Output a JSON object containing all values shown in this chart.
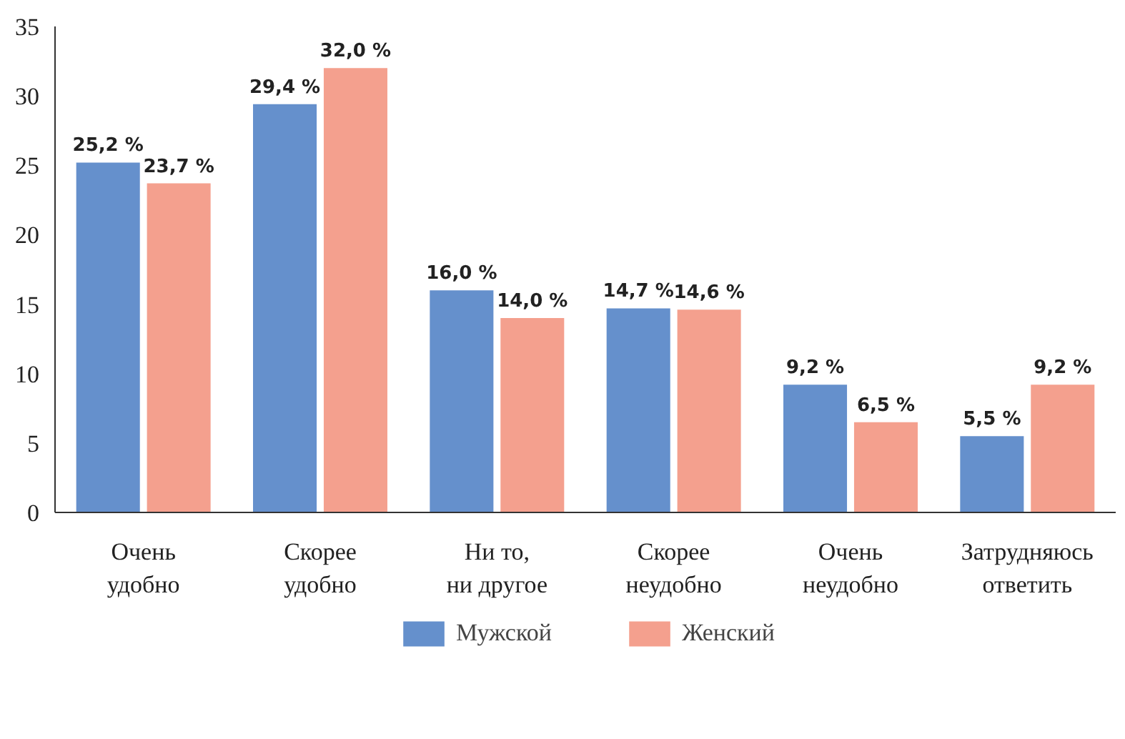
{
  "chart_data": {
    "type": "bar",
    "categories": [
      "Очень\nудобно",
      "Скорее\nудобно",
      "Ни то,\nни другое",
      "Скорее\nнеудобно",
      "Очень\nнеудобно",
      "Затрудняюсь\nответить"
    ],
    "series": [
      {
        "name": "Мужской",
        "color": "#6590cc",
        "values": [
          25.2,
          29.4,
          16.0,
          14.7,
          9.2,
          5.5
        ],
        "value_labels": [
          "25,2 %",
          "29,4 %",
          "16,0 %",
          "14,7 %",
          "9,2 %",
          "5,5 %"
        ]
      },
      {
        "name": "Женский",
        "color": "#f4a08e",
        "values": [
          23.7,
          32.0,
          14.0,
          14.6,
          6.5,
          9.2
        ],
        "value_labels": [
          "23,7 %",
          "32,0 %",
          "14,0 %",
          "14,6 %",
          "6,5 %",
          "9,2 %"
        ]
      }
    ],
    "ylim": [
      0,
      35
    ],
    "yticks": [
      0,
      5,
      10,
      15,
      20,
      25,
      30,
      35
    ],
    "grid": false,
    "legend": "bottom"
  }
}
